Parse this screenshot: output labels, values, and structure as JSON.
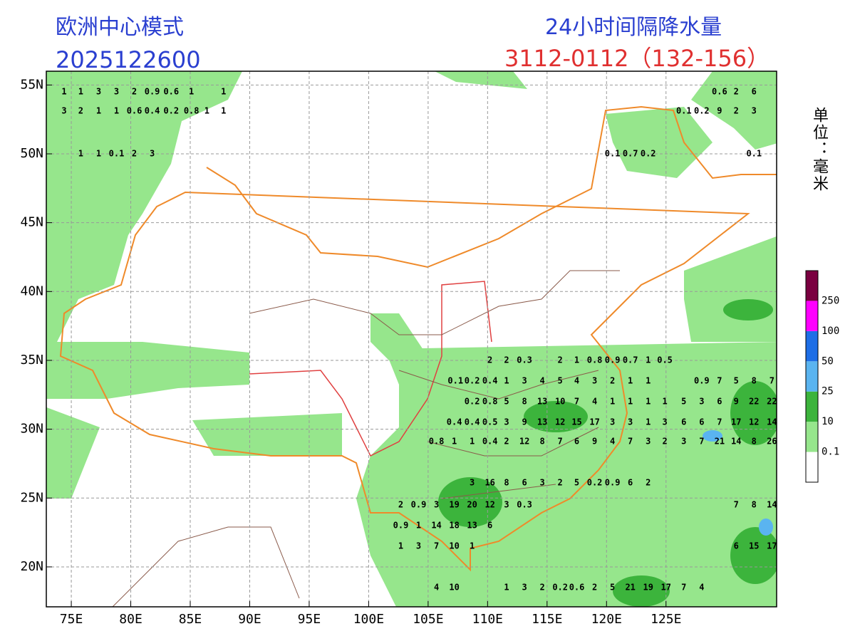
{
  "header": {
    "model": "欧洲中心模式",
    "init_time": "2025122600",
    "product": "24小时间隔降水量",
    "period": "3112-0112（132-156）",
    "unit": "单位：毫米"
  },
  "map": {
    "xlim": [
      72.9,
      134.3
    ],
    "ylim": [
      17.1,
      56.0
    ],
    "grid": true,
    "xticks": [
      {
        "value": 75,
        "label": "75E"
      },
      {
        "value": 80,
        "label": "80E"
      },
      {
        "value": 85,
        "label": "85E"
      },
      {
        "value": 90,
        "label": "90E"
      },
      {
        "value": 95,
        "label": "95E"
      },
      {
        "value": 100,
        "label": "100E"
      },
      {
        "value": 105,
        "label": "105E"
      },
      {
        "value": 110,
        "label": "110E"
      },
      {
        "value": 115,
        "label": "115E"
      },
      {
        "value": 120,
        "label": "120E"
      },
      {
        "value": 125,
        "label": "125E"
      }
    ],
    "yticks": [
      {
        "value": 20,
        "label": "20N"
      },
      {
        "value": 25,
        "label": "25N"
      },
      {
        "value": 30,
        "label": "30N"
      },
      {
        "value": 35,
        "label": "35N"
      },
      {
        "value": 40,
        "label": "40N"
      },
      {
        "value": 45,
        "label": "45N"
      },
      {
        "value": 50,
        "label": "50N"
      },
      {
        "value": 55,
        "label": "55N"
      }
    ]
  },
  "legend": {
    "levels": [
      0.1,
      10,
      25,
      50,
      100,
      250
    ],
    "colors": [
      "#ffffff",
      "#96e68c",
      "#3cb43c",
      "#5ab4f0",
      "#1e6ee6",
      "#ff00ff",
      "#7a0040"
    ]
  },
  "stations": [
    {
      "lat": 54.5,
      "lon": [
        74.4,
        75.8,
        77.3,
        78.8,
        80.3,
        81.8,
        83.4,
        85.1,
        87.8,
        129.5,
        130.9,
        132.4
      ],
      "values": [
        1,
        1,
        3,
        3,
        2,
        0.9,
        0.6,
        1,
        1,
        0.6,
        2,
        6
      ]
    },
    {
      "lat": 53.1,
      "lon": [
        74.4,
        75.8,
        77.3,
        78.8,
        80.3,
        81.8,
        83.4,
        85.1,
        86.4,
        87.8,
        126.5,
        128.0,
        129.5,
        130.9,
        132.4
      ],
      "values": [
        3,
        2,
        1,
        1,
        0.6,
        0.4,
        0.2,
        0.8,
        1,
        1,
        0.1,
        0.2,
        9,
        2,
        3
      ]
    },
    {
      "lat": 50.0,
      "lon": [
        75.8,
        77.3,
        78.8,
        80.3,
        81.8,
        120.5,
        122.0,
        123.5,
        132.4
      ],
      "values": [
        1,
        1,
        0.1,
        2,
        3,
        0.1,
        0.7,
        0.2,
        0.1
      ]
    },
    {
      "lat": 35.0,
      "lon": [
        110.2,
        111.6,
        113.1,
        116.1,
        117.5,
        119.0,
        120.5,
        122.0,
        123.5,
        124.9
      ],
      "values": [
        2,
        2,
        0.3,
        2,
        1,
        0.8,
        0.9,
        0.7,
        1,
        0.5
      ]
    },
    {
      "lat": 33.5,
      "lon": [
        107.3,
        108.7,
        110.2,
        111.6,
        113.1,
        114.6,
        116.1,
        117.5,
        119.0,
        120.5,
        122.0,
        123.5,
        128.0,
        129.5,
        130.9,
        132.4,
        133.9
      ],
      "values": [
        0.1,
        0.2,
        0.4,
        1,
        3,
        4,
        5,
        4,
        3,
        2,
        1,
        1,
        0.9,
        7,
        5,
        8,
        7
      ]
    },
    {
      "lat": 32.0,
      "lon": [
        108.7,
        110.2,
        111.6,
        113.1,
        114.6,
        116.1,
        117.5,
        119.0,
        120.5,
        122.0,
        123.5,
        124.9,
        126.5,
        128.0,
        129.5,
        130.9,
        132.4,
        133.9
      ],
      "values": [
        0.2,
        0.8,
        5,
        8,
        13,
        10,
        7,
        4,
        1,
        1,
        1,
        1,
        5,
        3,
        6,
        9,
        22,
        22
      ]
    },
    {
      "lat": 30.5,
      "lon": [
        107.2,
        108.7,
        110.2,
        111.6,
        113.1,
        114.6,
        116.1,
        117.5,
        119.0,
        120.5,
        122.0,
        123.5,
        124.9,
        126.5,
        128.0,
        129.5,
        130.9,
        132.4,
        133.9
      ],
      "values": [
        0.4,
        0.4,
        0.5,
        3,
        9,
        13,
        12,
        15,
        17,
        3,
        3,
        1,
        3,
        6,
        6,
        7,
        17,
        12,
        14
      ]
    },
    {
      "lat": 29.1,
      "lon": [
        105.7,
        107.2,
        108.7,
        110.2,
        111.6,
        113.1,
        114.6,
        116.1,
        117.5,
        119.0,
        120.5,
        122.0,
        123.5,
        124.9,
        126.5,
        128.0,
        129.5,
        130.9,
        132.4,
        133.9
      ],
      "values": [
        0.8,
        1,
        1,
        0.4,
        2,
        12,
        8,
        7,
        6,
        9,
        4,
        7,
        3,
        2,
        3,
        7,
        21,
        14,
        8,
        26
      ]
    },
    {
      "lat": 26.1,
      "lon": [
        108.7,
        110.2,
        111.6,
        113.1,
        114.6,
        116.1,
        117.5,
        119.0,
        120.5,
        122.0,
        123.5
      ],
      "values": [
        3,
        16,
        8,
        6,
        3,
        2,
        5,
        0.2,
        0.9,
        6,
        2
      ]
    },
    {
      "lat": 24.5,
      "lon": [
        102.7,
        104.2,
        105.7,
        107.2,
        108.7,
        110.2,
        111.6,
        113.1,
        130.9,
        132.4,
        133.9
      ],
      "values": [
        2,
        0.9,
        3,
        19,
        20,
        12,
        3,
        0.3,
        7,
        8,
        14
      ]
    },
    {
      "lat": 23.0,
      "lon": [
        102.7,
        104.2,
        105.7,
        107.2,
        108.7,
        110.2
      ],
      "values": [
        0.9,
        1,
        14,
        18,
        13,
        6
      ]
    },
    {
      "lat": 21.5,
      "lon": [
        102.7,
        104.2,
        105.7,
        107.2,
        108.7,
        130.9,
        132.4,
        133.9
      ],
      "values": [
        1,
        3,
        7,
        10,
        1,
        6,
        15,
        17
      ]
    },
    {
      "lat": 18.5,
      "lon": [
        105.7,
        107.2,
        111.6,
        113.1,
        114.6,
        116.1,
        117.5,
        119.0,
        120.5,
        122.0,
        123.5,
        125.0,
        126.5,
        128.0
      ],
      "values": [
        4,
        10,
        1,
        3,
        2,
        0.2,
        0.6,
        2,
        5,
        21,
        19,
        17,
        7,
        4
      ]
    }
  ]
}
